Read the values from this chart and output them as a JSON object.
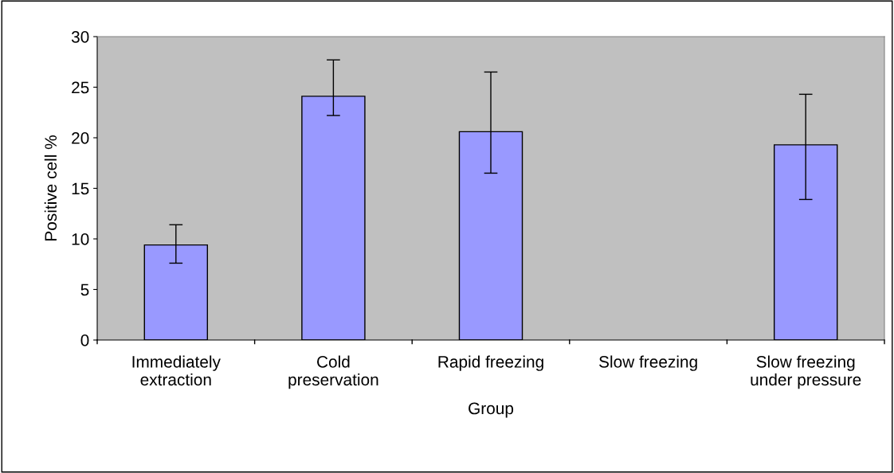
{
  "chart_data": {
    "type": "bar",
    "xlabel": "Group",
    "ylabel": "Positive cell %",
    "categories": [
      "Immediately\nextraction",
      "Cold\npreservation",
      "Rapid freezing",
      "Slow freezing",
      "Slow freezing\nunder pressure"
    ],
    "values": [
      9.4,
      24.1,
      20.6,
      null,
      19.3
    ],
    "errors": [
      [
        7.6,
        11.4
      ],
      [
        22.2,
        27.7
      ],
      [
        16.5,
        26.5
      ],
      null,
      [
        13.9,
        24.3
      ]
    ],
    "color": "#9999ff",
    "ylim": [
      0,
      30
    ],
    "yticks": [
      0,
      5,
      10,
      15,
      20,
      25,
      30
    ],
    "grid": false
  }
}
